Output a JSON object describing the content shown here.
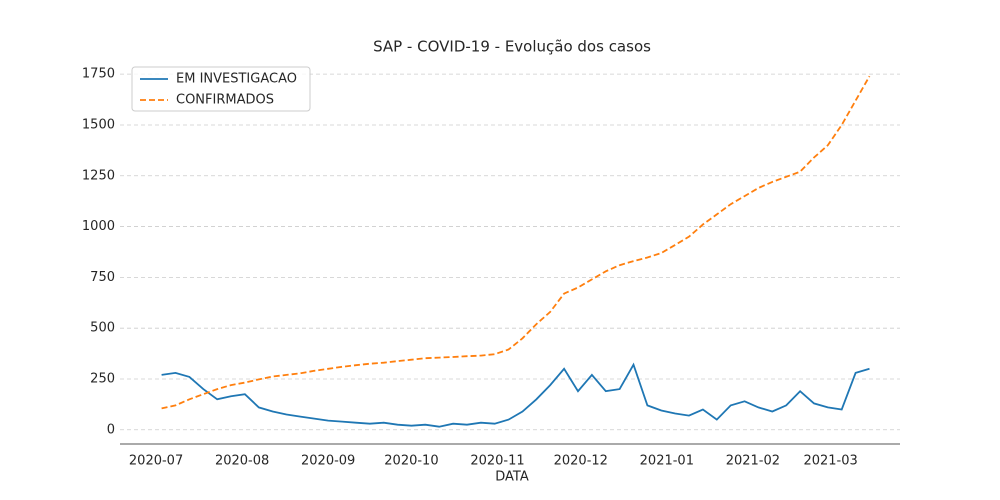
{
  "chart_data": {
    "type": "line",
    "title": "SAP - COVID-19 - Evolução dos casos",
    "xlabel": "DATA",
    "x": [
      2,
      7,
      12,
      17,
      22,
      27,
      32,
      37,
      42,
      47,
      52,
      57,
      62,
      67,
      72,
      77,
      82,
      87,
      92,
      97,
      102,
      107,
      112,
      117,
      122,
      127,
      132,
      137,
      142,
      147,
      152,
      157,
      162,
      167,
      172,
      177,
      182,
      187,
      192,
      197,
      202,
      207,
      212,
      217,
      222,
      227,
      232,
      237,
      242,
      247,
      252,
      257
    ],
    "series": [
      {
        "name": "EM INVESTIGACAO",
        "color": "#1f77b4",
        "dash": false,
        "values": [
          270,
          280,
          260,
          200,
          150,
          165,
          175,
          110,
          90,
          75,
          65,
          55,
          45,
          40,
          35,
          30,
          35,
          25,
          20,
          25,
          15,
          30,
          25,
          35,
          30,
          50,
          90,
          150,
          220,
          300,
          190,
          270,
          190,
          200,
          320,
          120,
          95,
          80,
          70,
          100,
          50,
          120,
          140,
          110,
          90,
          120,
          190,
          130,
          110,
          100,
          280,
          300
        ]
      },
      {
        "name": "CONFIRMADOS",
        "color": "#ff7f0e",
        "dash": true,
        "values": [
          105,
          120,
          150,
          175,
          200,
          220,
          232,
          248,
          262,
          270,
          278,
          290,
          300,
          310,
          318,
          325,
          330,
          338,
          345,
          352,
          355,
          358,
          362,
          365,
          372,
          395,
          450,
          520,
          580,
          670,
          700,
          740,
          780,
          810,
          830,
          848,
          870,
          910,
          950,
          1010,
          1060,
          1110,
          1150,
          1190,
          1220,
          1245,
          1270,
          1340,
          1400,
          1500,
          1620,
          1740
        ]
      }
    ],
    "xlim": [
      -13,
      268
    ],
    "xticks": [
      {
        "value": 0,
        "label": "2020-07"
      },
      {
        "value": 31,
        "label": "2020-08"
      },
      {
        "value": 62,
        "label": "2020-09"
      },
      {
        "value": 92,
        "label": "2020-10"
      },
      {
        "value": 123,
        "label": "2020-11"
      },
      {
        "value": 153,
        "label": "2020-12"
      },
      {
        "value": 184,
        "label": "2021-01"
      },
      {
        "value": 215,
        "label": "2021-02"
      },
      {
        "value": 243,
        "label": "2021-03"
      }
    ],
    "ylim": [
      -70,
      1800
    ],
    "yticks": [
      0,
      250,
      500,
      750,
      1000,
      1250,
      1500,
      1750
    ],
    "grid": true,
    "legend": "upper-left"
  }
}
